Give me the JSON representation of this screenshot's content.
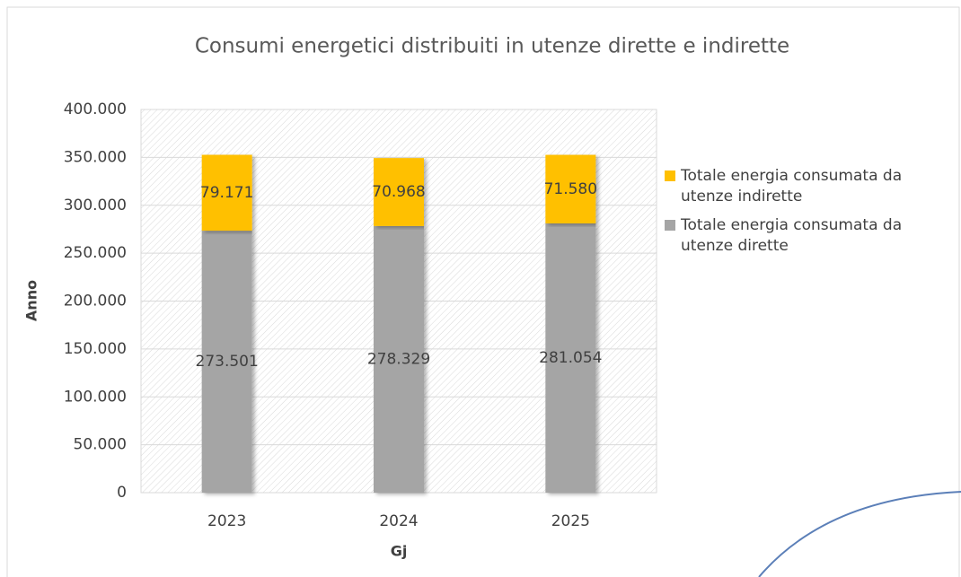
{
  "chart_data": {
    "type": "stacked_bar",
    "title": "Consumi energetici distribuiti in utenze dirette e indirette",
    "y_label": "Anno",
    "x_label": "Gj",
    "categories": [
      "2023",
      "2024",
      "2025"
    ],
    "series": [
      {
        "name": "Totale energia consumata da utenze dirette",
        "color": "#a5a5a5",
        "values": [
          273501,
          278329,
          281054
        ],
        "value_labels": [
          "273.501",
          "278.329",
          "281.054"
        ]
      },
      {
        "name": "Totale energia consumata da utenze indirette",
        "color": "#ffc000",
        "values": [
          79171,
          70968,
          71580
        ],
        "value_labels": [
          "79.171",
          "70.968",
          "71.580"
        ]
      }
    ],
    "ylim": [
      0,
      400000
    ],
    "yticks": [
      0,
      {
        "value": 50000,
        "label": "50.000"
      },
      {
        "value": 100000,
        "label": "100.000"
      },
      {
        "value": 150000,
        "label": "150.000"
      },
      {
        "value": 200000,
        "label": "200.000"
      },
      {
        "value": 250000,
        "label": "250.000"
      },
      {
        "value": 300000,
        "label": "300.000"
      },
      {
        "value": 350000,
        "label": "350.000"
      },
      {
        "value": 400000,
        "label": "400.000"
      }
    ],
    "legend": "right"
  }
}
